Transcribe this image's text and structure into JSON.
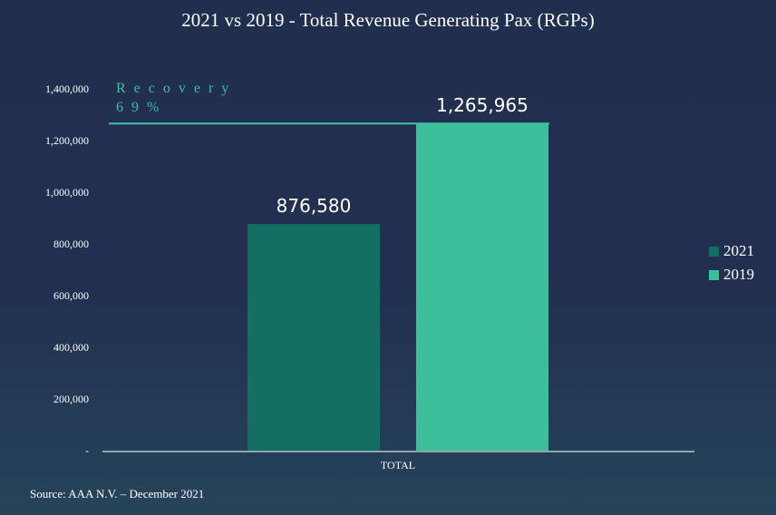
{
  "chart_data": {
    "type": "bar",
    "title": "2021 vs 2019 - Total Revenue Generating Pax (RGPs)",
    "categories": [
      "TOTAL"
    ],
    "series": [
      {
        "name": "2021",
        "values": [
          876580
        ],
        "label": "876,580",
        "color": "#146e63"
      },
      {
        "name": "2019",
        "values": [
          1265965
        ],
        "label": "1,265,965",
        "color": "#3dbf9c"
      }
    ],
    "xlabel": "",
    "ylabel": "",
    "ylim": [
      0,
      1400000
    ],
    "yticks": [
      0,
      200000,
      400000,
      600000,
      800000,
      1000000,
      1200000,
      1400000
    ],
    "ytick_labels": [
      "-",
      "200,000",
      "400,000",
      "600,000",
      "800,000",
      "1,000,000",
      "1,200,000",
      "1,400,000"
    ],
    "grid": false,
    "legend_position": "right",
    "annotation": {
      "line1": "Recovery",
      "line2": "69%",
      "reference_value": 1265965,
      "color": "#3fbf9b"
    }
  },
  "footer": {
    "source": "Source: AAA N.V. – December 2021"
  }
}
